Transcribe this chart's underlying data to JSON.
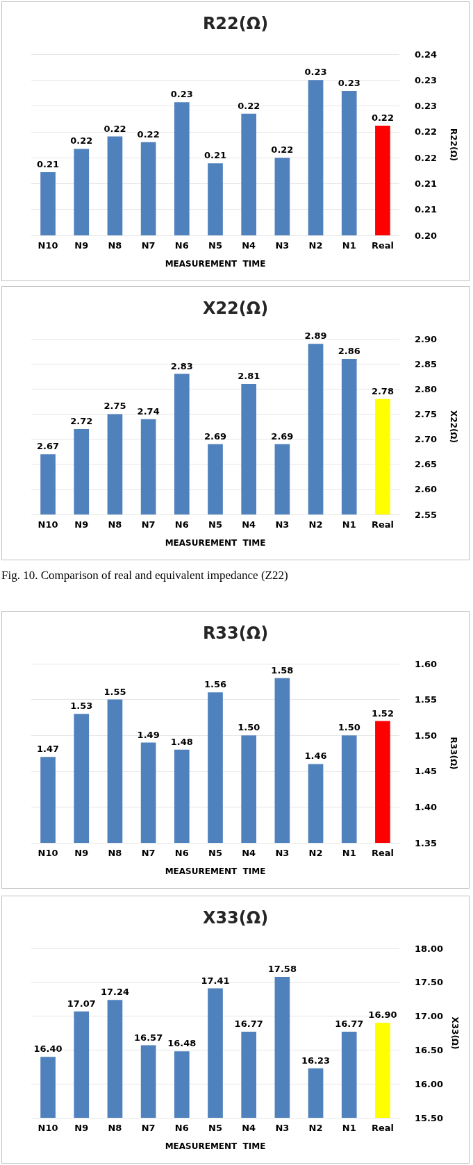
{
  "chart_data": [
    {
      "type": "bar",
      "title": "R22(Ω)",
      "xlabel": "MEASUREMENT  TIME",
      "ylabel": "R22(Ω)",
      "categories": [
        "N10",
        "N9",
        "N8",
        "N7",
        "N6",
        "N5",
        "N4",
        "N3",
        "N2",
        "N1",
        "Real"
      ],
      "values": [
        0.2122,
        0.2167,
        0.2191,
        0.218,
        0.2257,
        0.2139,
        0.2235,
        0.215,
        0.23,
        0.2279,
        0.2212
      ],
      "value_labels": [
        "0.21",
        "0.22",
        "0.22",
        "0.22",
        "0.23",
        "0.21",
        "0.22",
        "0.22",
        "0.23",
        "0.23",
        "0.22"
      ],
      "colors": [
        "#4f81bd",
        "#4f81bd",
        "#4f81bd",
        "#4f81bd",
        "#4f81bd",
        "#4f81bd",
        "#4f81bd",
        "#4f81bd",
        "#4f81bd",
        "#4f81bd",
        "#ff0000"
      ],
      "ylim": [
        0.2,
        0.235
      ],
      "yticks": [
        {
          "value": 0.2,
          "label": "0.20"
        },
        {
          "value": 0.205,
          "label": "0.21"
        },
        {
          "value": 0.21,
          "label": "0.21"
        },
        {
          "value": 0.215,
          "label": "0.22"
        },
        {
          "value": 0.22,
          "label": "0.22"
        },
        {
          "value": 0.225,
          "label": "0.23"
        },
        {
          "value": 0.23,
          "label": "0.23"
        },
        {
          "value": 0.235,
          "label": "0.24"
        }
      ],
      "grid": "y"
    },
    {
      "type": "bar",
      "title": "X22(Ω)",
      "xlabel": "MEASUREMENT  TIME",
      "ylabel": "X22(Ω)",
      "categories": [
        "N10",
        "N9",
        "N8",
        "N7",
        "N6",
        "N5",
        "N4",
        "N3",
        "N2",
        "N1",
        "Real"
      ],
      "values": [
        2.67,
        2.72,
        2.75,
        2.74,
        2.83,
        2.69,
        2.81,
        2.69,
        2.89,
        2.86,
        2.78
      ],
      "data_labels": true,
      "colors": [
        "#4f81bd",
        "#4f81bd",
        "#4f81bd",
        "#4f81bd",
        "#4f81bd",
        "#4f81bd",
        "#4f81bd",
        "#4f81bd",
        "#4f81bd",
        "#4f81bd",
        "#ffff00"
      ],
      "ylim": [
        2.55,
        2.9
      ],
      "yticks": [
        {
          "value": 2.55,
          "label": "2.55"
        },
        {
          "value": 2.6,
          "label": "2.60"
        },
        {
          "value": 2.65,
          "label": "2.65"
        },
        {
          "value": 2.7,
          "label": "2.70"
        },
        {
          "value": 2.75,
          "label": "2.75"
        },
        {
          "value": 2.8,
          "label": "2.80"
        },
        {
          "value": 2.85,
          "label": "2.85"
        },
        {
          "value": 2.9,
          "label": "2.90"
        }
      ],
      "grid": "y",
      "annotations": [
        "Fig. 10. Comparison of real and equivalent impedance (Z22)"
      ]
    },
    {
      "type": "bar",
      "title": "R33(Ω)",
      "xlabel": "MEASUREMENT  TIME",
      "ylabel": "R33(Ω)",
      "categories": [
        "N10",
        "N9",
        "N8",
        "N7",
        "N6",
        "N5",
        "N4",
        "N3",
        "N2",
        "N1",
        "Real"
      ],
      "values": [
        1.47,
        1.53,
        1.55,
        1.49,
        1.48,
        1.56,
        1.5,
        1.58,
        1.46,
        1.5,
        1.52
      ],
      "value_labels": [
        "1.47",
        "1.53",
        "1.55",
        "1.49",
        "1.48",
        "1.56",
        "1.50",
        "1.58",
        "1.46",
        "1.50",
        "1.52"
      ],
      "colors": [
        "#4f81bd",
        "#4f81bd",
        "#4f81bd",
        "#4f81bd",
        "#4f81bd",
        "#4f81bd",
        "#4f81bd",
        "#4f81bd",
        "#4f81bd",
        "#4f81bd",
        "#ff0000"
      ],
      "ylim": [
        1.35,
        1.6
      ],
      "yticks": [
        {
          "value": 1.35,
          "label": "1.35"
        },
        {
          "value": 1.4,
          "label": "1.40"
        },
        {
          "value": 1.45,
          "label": "1.45"
        },
        {
          "value": 1.5,
          "label": "1.50"
        },
        {
          "value": 1.55,
          "label": "1.55"
        },
        {
          "value": 1.6,
          "label": "1.60"
        }
      ],
      "grid": "y"
    },
    {
      "type": "bar",
      "title": "X33(Ω)",
      "xlabel": "MEASUREMENT  TIME",
      "ylabel": "X33(Ω)",
      "categories": [
        "N10",
        "N9",
        "N8",
        "N7",
        "N6",
        "N5",
        "N4",
        "N3",
        "N2",
        "N1",
        "Real"
      ],
      "values": [
        16.4,
        17.07,
        17.24,
        16.57,
        16.48,
        17.41,
        16.77,
        17.58,
        16.23,
        16.77,
        16.9
      ],
      "value_labels": [
        "16.40",
        "17.07",
        "17.24",
        "16.57",
        "16.48",
        "17.41",
        "16.77",
        "17.58",
        "16.23",
        "16.77",
        "16.90"
      ],
      "colors": [
        "#4f81bd",
        "#4f81bd",
        "#4f81bd",
        "#4f81bd",
        "#4f81bd",
        "#4f81bd",
        "#4f81bd",
        "#4f81bd",
        "#4f81bd",
        "#4f81bd",
        "#ffff00"
      ],
      "ylim": [
        15.5,
        18
      ],
      "yticks": [
        {
          "value": 15.5,
          "label": "15.50"
        },
        {
          "value": 16,
          "label": "16.00"
        },
        {
          "value": 16.5,
          "label": "16.50"
        },
        {
          "value": 17,
          "label": "17.00"
        },
        {
          "value": 17.5,
          "label": "17.50"
        },
        {
          "value": 18,
          "label": "18.00"
        }
      ],
      "grid": "y"
    }
  ]
}
